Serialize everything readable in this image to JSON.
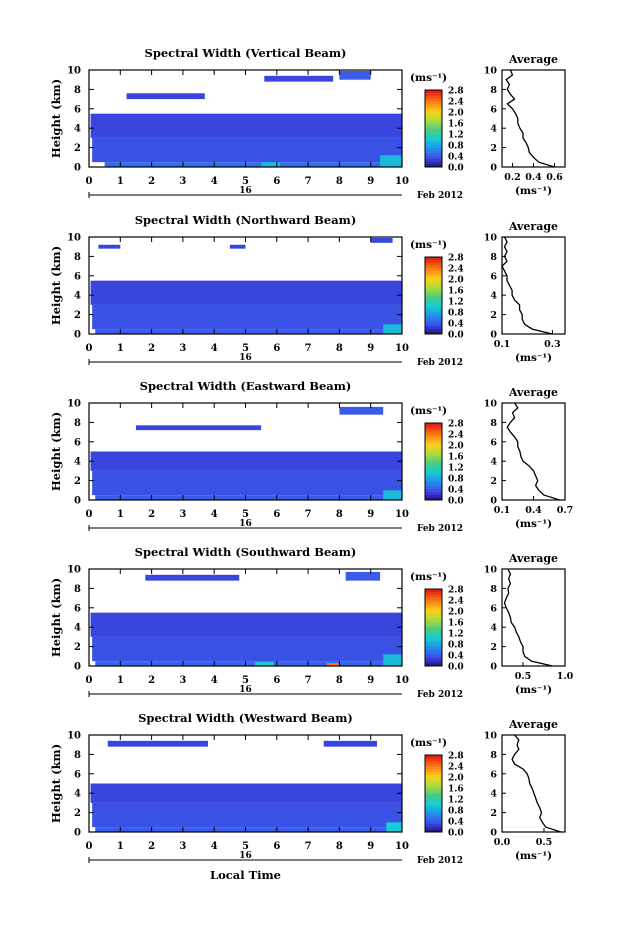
{
  "figure": {
    "xlabel": "Local Time",
    "colors": {
      "min": "#2a1a6e",
      "mid": "#18c8d8",
      "max": "#e01010",
      "empty": "#ffffff"
    }
  },
  "chart_data": [
    {
      "type": "heatmap",
      "title": "Spectral Width (Vertical Beam)",
      "xlabel": "Local Time",
      "ylabel": "Height (km)",
      "x_ticks": [
        "0",
        "1",
        "2",
        "3",
        "4",
        "5",
        "6",
        "7",
        "8",
        "9",
        "10"
      ],
      "xlim": [
        0,
        10
      ],
      "y_ticks": [
        "0",
        "2",
        "4",
        "6",
        "8",
        "10"
      ],
      "ylim": [
        0,
        10
      ],
      "date_day": "16",
      "date_label": "Feb 2012",
      "colorbar": {
        "unit": "(ms⁻¹)",
        "ticks": [
          "0.0",
          "0.4",
          "0.8",
          "1.2",
          "1.6",
          "2.0",
          "2.4",
          "2.8"
        ],
        "range": [
          0,
          2.8
        ]
      },
      "cells": [
        {
          "x0": 0.5,
          "x1": 10,
          "y0": 0,
          "y1": 0.5,
          "v": 0.5
        },
        {
          "x0": 0.1,
          "x1": 10,
          "y0": 0.5,
          "y1": 3.0,
          "v": 0.35
        },
        {
          "x0": 0.05,
          "x1": 10,
          "y0": 3.0,
          "y1": 5.5,
          "v": 0.3
        },
        {
          "x0": 1.2,
          "x1": 3.7,
          "y0": 7.0,
          "y1": 7.6,
          "v": 0.3
        },
        {
          "x0": 5.6,
          "x1": 7.8,
          "y0": 8.8,
          "y1": 9.4,
          "v": 0.3
        },
        {
          "x0": 8.0,
          "x1": 9.0,
          "y0": 9.0,
          "y1": 9.9,
          "v": 0.4
        },
        {
          "x0": 5.5,
          "x1": 6.1,
          "y0": 0,
          "y1": 0.5,
          "v": 0.9
        },
        {
          "x0": 9.3,
          "x1": 10,
          "y0": 0,
          "y1": 1.2,
          "v": 0.9
        }
      ],
      "average": {
        "title": "Average",
        "unit": "(ms⁻¹)",
        "x_ticks": [
          "0.2",
          "0.4",
          "0.6"
        ],
        "xlim": [
          0.1,
          0.7
        ],
        "height": [
          0,
          0.5,
          1,
          1.5,
          2,
          2.5,
          3,
          3.5,
          4,
          4.5,
          5,
          5.5,
          6,
          6.5,
          7,
          7.5,
          8,
          8.5,
          9,
          9.5,
          10
        ],
        "values": [
          0.6,
          0.45,
          0.4,
          0.36,
          0.35,
          0.33,
          0.3,
          0.3,
          0.27,
          0.25,
          0.25,
          0.23,
          0.2,
          0.15,
          0.22,
          0.18,
          0.15,
          0.17,
          0.14,
          0.2,
          0.18
        ]
      }
    },
    {
      "type": "heatmap",
      "title": "Spectral Width (Northward Beam)",
      "xlabel": "Local Time",
      "ylabel": "Height (km)",
      "x_ticks": [
        "0",
        "1",
        "2",
        "3",
        "4",
        "5",
        "6",
        "7",
        "8",
        "9",
        "10"
      ],
      "xlim": [
        0,
        10
      ],
      "y_ticks": [
        "0",
        "2",
        "4",
        "6",
        "8",
        "10"
      ],
      "ylim": [
        0,
        10
      ],
      "date_day": "16",
      "date_label": "Feb 2012",
      "colorbar": {
        "unit": "(ms⁻¹)",
        "ticks": [
          "0.0",
          "0.4",
          "0.8",
          "1.2",
          "1.6",
          "2.0",
          "2.4",
          "2.8"
        ],
        "range": [
          0,
          2.8
        ]
      },
      "cells": [
        {
          "x0": 0.2,
          "x1": 10,
          "y0": 0,
          "y1": 0.5,
          "v": 0.4
        },
        {
          "x0": 0.1,
          "x1": 10,
          "y0": 0.5,
          "y1": 3.0,
          "v": 0.35
        },
        {
          "x0": 0.05,
          "x1": 10,
          "y0": 3.0,
          "y1": 5.5,
          "v": 0.3
        },
        {
          "x0": 0.3,
          "x1": 1.0,
          "y0": 8.8,
          "y1": 9.2,
          "v": 0.3
        },
        {
          "x0": 4.5,
          "x1": 5.0,
          "y0": 8.8,
          "y1": 9.2,
          "v": 0.3
        },
        {
          "x0": 9.0,
          "x1": 9.7,
          "y0": 9.4,
          "y1": 9.9,
          "v": 0.3
        },
        {
          "x0": 9.4,
          "x1": 10,
          "y0": 0,
          "y1": 1.0,
          "v": 0.9
        }
      ],
      "average": {
        "title": "Average",
        "unit": "(ms⁻¹)",
        "x_ticks": [
          "0.1",
          "0.3"
        ],
        "xlim": [
          0.1,
          0.35
        ],
        "height": [
          0,
          0.5,
          1,
          1.5,
          2,
          2.5,
          3,
          3.5,
          4,
          4.5,
          5,
          5.5,
          6,
          6.5,
          7,
          7.5,
          8,
          8.5,
          9,
          9.5,
          10
        ],
        "values": [
          0.3,
          0.22,
          0.19,
          0.18,
          0.18,
          0.17,
          0.17,
          0.15,
          0.14,
          0.14,
          0.13,
          0.12,
          0.12,
          0.11,
          0.1,
          0.12,
          0.11,
          0.12,
          0.11,
          0.12,
          0.11
        ]
      }
    },
    {
      "type": "heatmap",
      "title": "Spectral Width (Eastward Beam)",
      "xlabel": "Local Time",
      "ylabel": "Height (km)",
      "x_ticks": [
        "0",
        "1",
        "2",
        "3",
        "4",
        "5",
        "6",
        "7",
        "8",
        "9",
        "10"
      ],
      "xlim": [
        0,
        10
      ],
      "y_ticks": [
        "0",
        "2",
        "4",
        "6",
        "8",
        "10"
      ],
      "ylim": [
        0,
        10
      ],
      "date_day": "16",
      "date_label": "Feb 2012",
      "colorbar": {
        "unit": "(ms⁻¹)",
        "ticks": [
          "0.0",
          "0.4",
          "0.8",
          "1.2",
          "1.6",
          "2.0",
          "2.4",
          "2.8"
        ],
        "range": [
          0,
          2.8
        ]
      },
      "cells": [
        {
          "x0": 0.2,
          "x1": 10,
          "y0": 0,
          "y1": 0.5,
          "v": 0.4
        },
        {
          "x0": 0.1,
          "x1": 10,
          "y0": 0.5,
          "y1": 3.0,
          "v": 0.35
        },
        {
          "x0": 0.05,
          "x1": 10,
          "y0": 3.0,
          "y1": 5.0,
          "v": 0.3
        },
        {
          "x0": 1.5,
          "x1": 5.5,
          "y0": 7.2,
          "y1": 7.7,
          "v": 0.3
        },
        {
          "x0": 8.0,
          "x1": 9.4,
          "y0": 8.8,
          "y1": 9.6,
          "v": 0.4
        },
        {
          "x0": 9.4,
          "x1": 10,
          "y0": 0,
          "y1": 1.0,
          "v": 0.9
        }
      ],
      "average": {
        "title": "Average",
        "unit": "(ms⁻¹)",
        "x_ticks": [
          "0.1",
          "0.4",
          "0.7"
        ],
        "xlim": [
          0.1,
          0.7
        ],
        "height": [
          0,
          0.5,
          1,
          1.5,
          2,
          2.5,
          3,
          3.5,
          4,
          4.5,
          5,
          5.5,
          6,
          6.5,
          7,
          7.5,
          8,
          8.5,
          9,
          9.5,
          10
        ],
        "values": [
          0.65,
          0.5,
          0.45,
          0.42,
          0.44,
          0.42,
          0.4,
          0.36,
          0.3,
          0.28,
          0.27,
          0.25,
          0.25,
          0.22,
          0.18,
          0.15,
          0.18,
          0.22,
          0.2,
          0.25,
          0.22
        ]
      }
    },
    {
      "type": "heatmap",
      "title": "Spectral Width (Southward Beam)",
      "xlabel": "Local Time",
      "ylabel": "Height (km)",
      "x_ticks": [
        "0",
        "1",
        "2",
        "3",
        "4",
        "5",
        "6",
        "7",
        "8",
        "9",
        "10"
      ],
      "xlim": [
        0,
        10
      ],
      "y_ticks": [
        "0",
        "2",
        "4",
        "6",
        "8",
        "10"
      ],
      "ylim": [
        0,
        10
      ],
      "date_day": "16",
      "date_label": "Feb 2012",
      "colorbar": {
        "unit": "(ms⁻¹)",
        "ticks": [
          "0.0",
          "0.4",
          "0.8",
          "1.2",
          "1.6",
          "2.0",
          "2.4",
          "2.8"
        ],
        "range": [
          0,
          2.8
        ]
      },
      "cells": [
        {
          "x0": 0.2,
          "x1": 10,
          "y0": 0,
          "y1": 0.5,
          "v": 0.45
        },
        {
          "x0": 0.1,
          "x1": 10,
          "y0": 0.5,
          "y1": 3.0,
          "v": 0.35
        },
        {
          "x0": 0.05,
          "x1": 10,
          "y0": 3.0,
          "y1": 5.5,
          "v": 0.3
        },
        {
          "x0": 1.8,
          "x1": 4.8,
          "y0": 8.8,
          "y1": 9.4,
          "v": 0.3
        },
        {
          "x0": 8.2,
          "x1": 9.3,
          "y0": 8.8,
          "y1": 9.7,
          "v": 0.4
        },
        {
          "x0": 5.3,
          "x1": 5.9,
          "y0": 0,
          "y1": 0.4,
          "v": 1.0
        },
        {
          "x0": 7.6,
          "x1": 8.0,
          "y0": 0,
          "y1": 0.3,
          "v": 2.4
        },
        {
          "x0": 9.4,
          "x1": 10,
          "y0": 0,
          "y1": 1.2,
          "v": 0.9
        }
      ],
      "average": {
        "title": "Average",
        "unit": "(ms⁻¹)",
        "x_ticks": [
          "0.5",
          "1.0"
        ],
        "xlim": [
          0.25,
          1.0
        ],
        "height": [
          0,
          0.5,
          1,
          1.5,
          2,
          2.5,
          3,
          3.5,
          4,
          4.5,
          5,
          5.5,
          6,
          6.5,
          7,
          7.5,
          8,
          8.5,
          9,
          9.5,
          10
        ],
        "values": [
          0.85,
          0.6,
          0.52,
          0.5,
          0.5,
          0.47,
          0.45,
          0.42,
          0.4,
          0.36,
          0.35,
          0.33,
          0.3,
          0.28,
          0.3,
          0.33,
          0.32,
          0.35,
          0.33,
          0.35,
          0.32
        ]
      }
    },
    {
      "type": "heatmap",
      "title": "Spectral Width (Westward Beam)",
      "xlabel": "Local Time",
      "ylabel": "Height (km)",
      "x_ticks": [
        "0",
        "1",
        "2",
        "3",
        "4",
        "5",
        "6",
        "7",
        "8",
        "9",
        "10"
      ],
      "xlim": [
        0,
        10
      ],
      "y_ticks": [
        "0",
        "2",
        "4",
        "6",
        "8",
        "10"
      ],
      "ylim": [
        0,
        10
      ],
      "date_day": "16",
      "date_label": "Feb 2012",
      "colorbar": {
        "unit": "(ms⁻¹)",
        "ticks": [
          "0.0",
          "0.4",
          "0.8",
          "1.2",
          "1.6",
          "2.0",
          "2.4",
          "2.8"
        ],
        "range": [
          0,
          2.8
        ]
      },
      "cells": [
        {
          "x0": 0.2,
          "x1": 10,
          "y0": 0,
          "y1": 0.5,
          "v": 0.4
        },
        {
          "x0": 0.1,
          "x1": 10,
          "y0": 0.5,
          "y1": 3.0,
          "v": 0.35
        },
        {
          "x0": 0.05,
          "x1": 10,
          "y0": 3.0,
          "y1": 5.0,
          "v": 0.3
        },
        {
          "x0": 0.6,
          "x1": 3.8,
          "y0": 8.8,
          "y1": 9.4,
          "v": 0.3
        },
        {
          "x0": 7.5,
          "x1": 9.2,
          "y0": 8.8,
          "y1": 9.4,
          "v": 0.3
        },
        {
          "x0": 9.5,
          "x1": 10,
          "y0": 0,
          "y1": 1.0,
          "v": 1.0
        }
      ],
      "average": {
        "title": "Average",
        "unit": "(ms⁻¹)",
        "x_ticks": [
          "0.0",
          "0.5"
        ],
        "xlim": [
          0.0,
          0.75
        ],
        "height": [
          0,
          0.5,
          1,
          1.5,
          2,
          2.5,
          3,
          3.5,
          4,
          4.5,
          5,
          5.5,
          6,
          6.5,
          7,
          7.5,
          8,
          8.5,
          9,
          9.5,
          10
        ],
        "values": [
          0.7,
          0.52,
          0.48,
          0.45,
          0.47,
          0.45,
          0.42,
          0.4,
          0.38,
          0.36,
          0.33,
          0.32,
          0.3,
          0.25,
          0.15,
          0.12,
          0.15,
          0.2,
          0.18,
          0.2,
          0.15
        ]
      }
    }
  ]
}
